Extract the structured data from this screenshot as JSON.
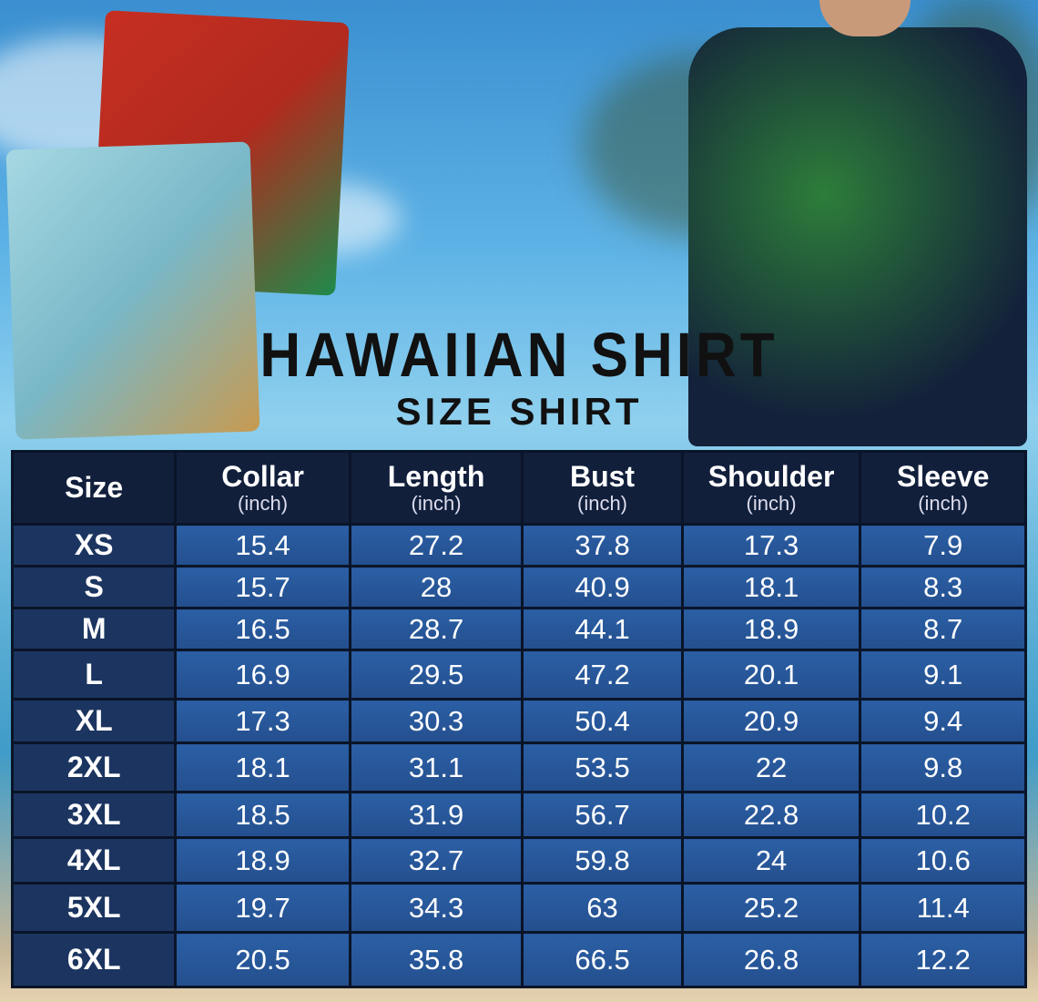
{
  "title": "HAWAIIAN SHIRT",
  "subtitle": "SIZE SHIRT",
  "table": {
    "headers": [
      {
        "label": "Size",
        "unit": ""
      },
      {
        "label": "Collar",
        "unit": "(inch)"
      },
      {
        "label": "Length",
        "unit": "(inch)"
      },
      {
        "label": "Bust",
        "unit": "(inch)"
      },
      {
        "label": "Shoulder",
        "unit": "(inch)"
      },
      {
        "label": "Sleeve",
        "unit": "(inch)"
      }
    ],
    "rows": [
      [
        "XS",
        "15.4",
        "27.2",
        "37.8",
        "17.3",
        "7.9"
      ],
      [
        "S",
        "15.7",
        "28",
        "40.9",
        "18.1",
        "8.3"
      ],
      [
        "M",
        "16.5",
        "28.7",
        "44.1",
        "18.9",
        "8.7"
      ],
      [
        "L",
        "16.9",
        "29.5",
        "47.2",
        "20.1",
        "9.1"
      ],
      [
        "XL",
        "17.3",
        "30.3",
        "50.4",
        "20.9",
        "9.4"
      ],
      [
        "2XL",
        "18.1",
        "31.1",
        "53.5",
        "22",
        "9.8"
      ],
      [
        "3XL",
        "18.5",
        "31.9",
        "56.7",
        "22.8",
        "10.2"
      ],
      [
        "4XL",
        "18.9",
        "32.7",
        "59.8",
        "24",
        "10.6"
      ],
      [
        "5XL",
        "19.7",
        "34.3",
        "63",
        "25.2",
        "11.4"
      ],
      [
        "6XL",
        "20.5",
        "35.8",
        "66.5",
        "26.8",
        "12.2"
      ]
    ]
  },
  "colors": {
    "header": "#111f3b",
    "cell": "#2b5fa5",
    "size_cell": "#1c3560"
  }
}
